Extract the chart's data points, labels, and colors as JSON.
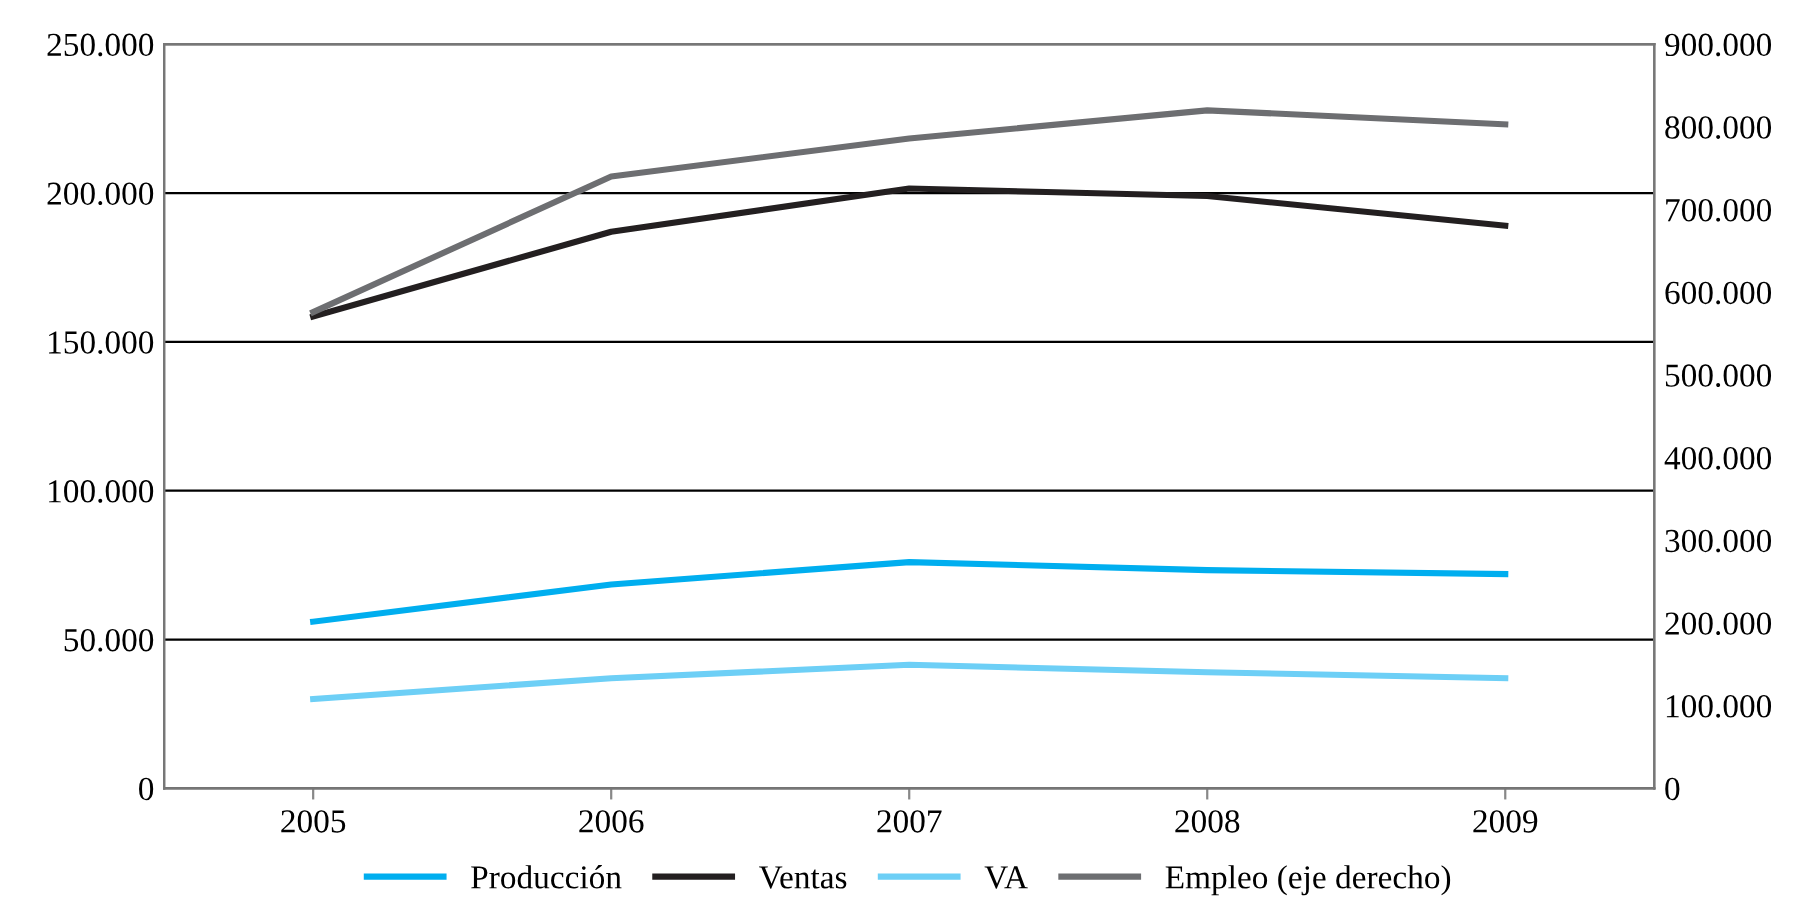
{
  "chart_data": {
    "type": "line",
    "categories": [
      "2005",
      "2006",
      "2007",
      "2008",
      "2009"
    ],
    "series": [
      {
        "name": "Producción",
        "color": "#00aeef",
        "values": [
          56000,
          68500,
          76000,
          73300,
          72000
        ]
      },
      {
        "name": "Ventas",
        "color": "#231f20",
        "values": [
          158500,
          187000,
          201500,
          199000,
          189000
        ]
      },
      {
        "name": "VA",
        "color": "#6dcff6",
        "values": [
          30000,
          37000,
          41500,
          39000,
          37000
        ]
      },
      {
        "name": "Empleo (eje derecho)",
        "color": "#6d6e71",
        "axis": "y2",
        "values": [
          576000,
          740000,
          786000,
          820000,
          803000
        ]
      }
    ],
    "ylim": [
      0,
      250000
    ],
    "yticks": [
      0,
      {
        "value": 50000,
        "label": "50.000"
      },
      {
        "value": 100000,
        "label": "100.000"
      },
      {
        "value": 150000,
        "label": "150.000"
      },
      {
        "value": 200000,
        "label": "200.000"
      },
      {
        "value": 250000,
        "label": "250.000"
      }
    ],
    "y2lim": [
      0,
      900000
    ],
    "y2ticks": [
      0,
      {
        "value": 100000,
        "label": "100.000"
      },
      {
        "value": 200000,
        "label": "200.000"
      },
      {
        "value": 300000,
        "label": "300.000"
      },
      {
        "value": 400000,
        "label": "400.000"
      },
      {
        "value": 500000,
        "label": "500.000"
      },
      {
        "value": 600000,
        "label": "600.000"
      },
      {
        "value": 700000,
        "label": "700.000"
      },
      {
        "value": 800000,
        "label": "800.000"
      },
      {
        "value": 900000,
        "label": "900.000"
      }
    ],
    "grid": "y",
    "legend": "bottom",
    "marker": "none",
    "line_style": "solid"
  }
}
